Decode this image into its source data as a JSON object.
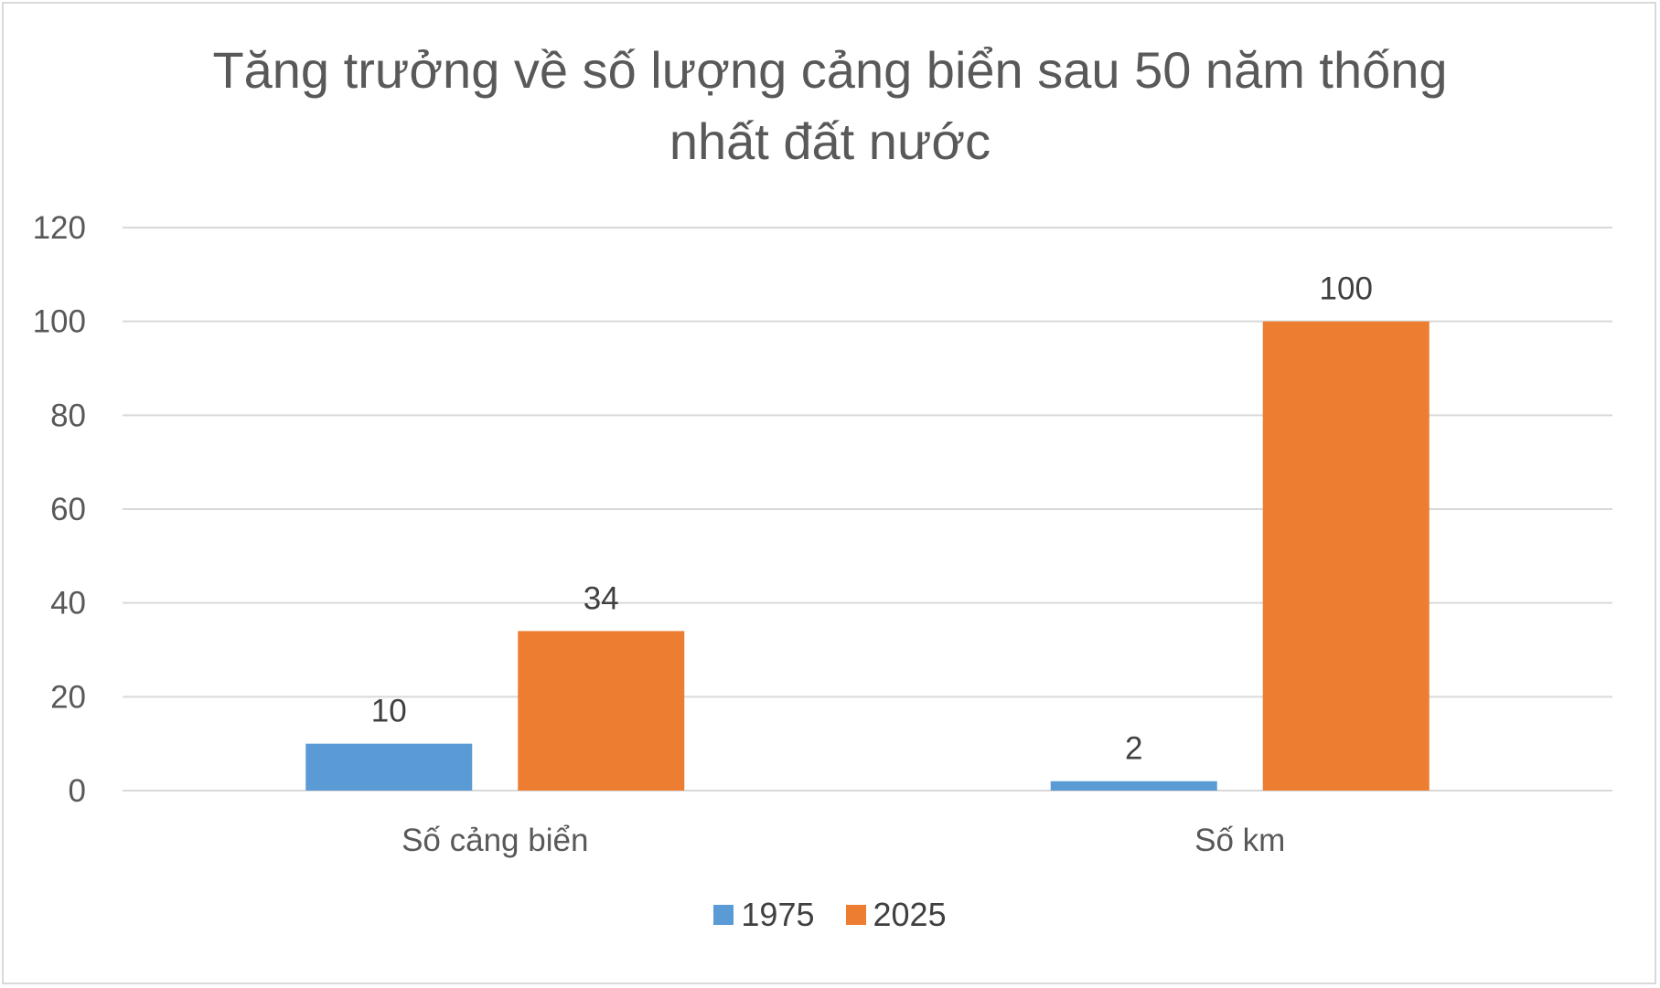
{
  "title_lines": [
    "Tăng trưởng về số lượng cảng biển sau 50 năm thống",
    "nhất đất nước"
  ],
  "colors": {
    "1975": "#5b9bd5",
    "2025": "#ed7d31",
    "grid": "#d9d9d9",
    "text": "#595959"
  },
  "chart_data": {
    "type": "bar",
    "title": "Tăng trưởng về số lượng cảng biển sau 50 năm thống nhất đất nước",
    "categories": [
      "Số cảng biển",
      "Số km"
    ],
    "series": [
      {
        "name": "1975",
        "values": [
          10,
          2
        ]
      },
      {
        "name": "2025",
        "values": [
          34,
          100
        ]
      }
    ],
    "yticks": [
      "0",
      "20",
      "40",
      "60",
      "80",
      "100",
      "120"
    ],
    "ylim": [
      0,
      120
    ],
    "grid": true,
    "data_labels": true,
    "legend_position": "bottom"
  }
}
